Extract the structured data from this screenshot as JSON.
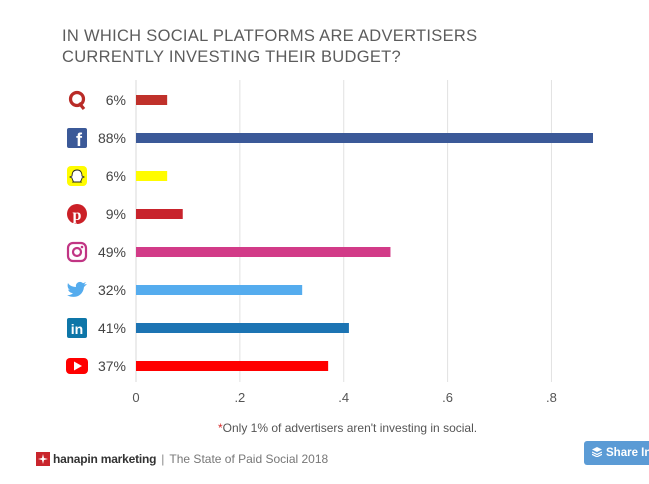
{
  "chart_data": {
    "type": "bar",
    "orientation": "horizontal",
    "title": "IN WHICH SOCIAL PLATFORMS ARE ADVERTISERS CURRENTLY INVESTING THEIR BUDGET?",
    "categories": [
      "Quora",
      "Facebook",
      "Snapchat",
      "Pinterest",
      "Instagram",
      "Twitter",
      "LinkedIn",
      "YouTube"
    ],
    "icons": [
      "quora-icon",
      "facebook-icon",
      "snapchat-icon",
      "pinterest-icon",
      "instagram-icon",
      "twitter-icon",
      "linkedin-icon",
      "youtube-icon"
    ],
    "values": [
      0.06,
      0.88,
      0.06,
      0.09,
      0.49,
      0.32,
      0.41,
      0.37
    ],
    "labels": [
      "6%",
      "88%",
      "6%",
      "9%",
      "49%",
      "32%",
      "41%",
      "37%"
    ],
    "colors": [
      "#c0312b",
      "#3b5998",
      "#fffc00",
      "#c8232c",
      "#d23b88",
      "#55acee",
      "#1c74b3",
      "#ff0000"
    ],
    "xlim": [
      0,
      0.88
    ],
    "xticks": [
      0,
      0.2,
      0.4,
      0.6,
      0.8
    ],
    "xtick_labels": [
      "0",
      ".2",
      ".4",
      ".6",
      ".8"
    ],
    "grid": true
  },
  "footnote": {
    "star": "*",
    "text": "Only 1% of advertisers aren't investing in social."
  },
  "brand": {
    "name": "hanapin marketing",
    "separator": "|",
    "subtitle": "The State of Paid Social 2018"
  },
  "share_button": {
    "icon": "layers-icon",
    "label": "Share In"
  }
}
